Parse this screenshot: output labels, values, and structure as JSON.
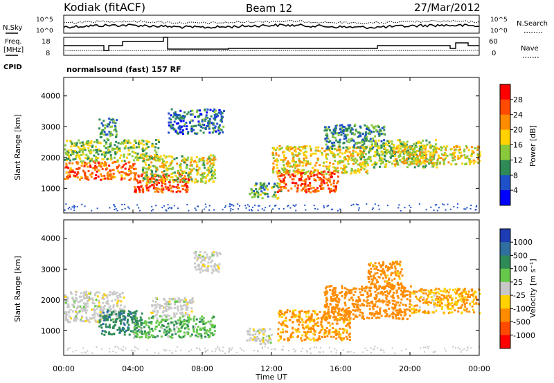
{
  "header": {
    "title": "Kodiak (fitACF)",
    "beam": "Beam 12",
    "date": "27/Mar/2012"
  },
  "aux": {
    "nsky_label": "N.Sky",
    "nsky_ticks": [
      "10^5",
      "10^0"
    ],
    "nsearch_label": "N.Search",
    "nsearch_ticks": [
      "10^5",
      "10^0"
    ],
    "freq_label_1": "Freq.",
    "freq_label_2": "[MHz]",
    "freq_ticks": [
      "18",
      "8"
    ],
    "nave_label": "Nave",
    "nave_ticks": [
      "60",
      "0"
    ],
    "cpid_label": "CPID",
    "cpid_value": "normalsound (fast) 157 RF"
  },
  "chart_data": [
    {
      "type": "heatmap",
      "panel": "power",
      "xlabel": "Time UT",
      "ylabel": "Slant Range [km]",
      "x_ticks": [
        "00:00",
        "04:00",
        "08:00",
        "12:00",
        "16:00",
        "20:00",
        "00:00"
      ],
      "y_ticks": [
        "1000",
        "2000",
        "3000",
        "4000"
      ],
      "xlim_hours": [
        0,
        24
      ],
      "ylim_km": [
        200,
        4600
      ],
      "colorbar": {
        "label": "Power [dB]",
        "ticks": [
          "28",
          "24",
          "20",
          "16",
          "12",
          "8",
          "4"
        ],
        "colors": [
          "#ff0000",
          "#ff4a00",
          "#ff8c00",
          "#ffd200",
          "#8ac83c",
          "#2e8b57",
          "#1e50c8",
          "#0000ff"
        ]
      },
      "regions": [
        {
          "t": [
            0.0,
            4.2
          ],
          "r": [
            1300,
            1900
          ],
          "level": 24
        },
        {
          "t": [
            0.0,
            5.5
          ],
          "r": [
            1900,
            2600
          ],
          "level": 14
        },
        {
          "t": [
            2.0,
            3.0
          ],
          "r": [
            2600,
            3300
          ],
          "level": 10
        },
        {
          "t": [
            4.0,
            7.2
          ],
          "r": [
            900,
            1500
          ],
          "level": 26
        },
        {
          "t": [
            4.5,
            8.7
          ],
          "r": [
            1200,
            2100
          ],
          "level": 16
        },
        {
          "t": [
            6.0,
            9.2
          ],
          "r": [
            2800,
            3600
          ],
          "level": 8
        },
        {
          "t": [
            10.7,
            12.5
          ],
          "r": [
            700,
            1200
          ],
          "level": 12
        },
        {
          "t": [
            12.3,
            15.8
          ],
          "r": [
            900,
            1600
          ],
          "level": 26
        },
        {
          "t": [
            12.0,
            17.5
          ],
          "r": [
            1500,
            2400
          ],
          "level": 18
        },
        {
          "t": [
            15.0,
            18.5
          ],
          "r": [
            2300,
            3100
          ],
          "level": 10
        },
        {
          "t": [
            17.0,
            21.5
          ],
          "r": [
            1700,
            2600
          ],
          "level": 14
        },
        {
          "t": [
            19.0,
            24.0
          ],
          "r": [
            1800,
            2400
          ],
          "level": 18
        }
      ]
    },
    {
      "type": "heatmap",
      "panel": "velocity",
      "xlabel": "Time UT",
      "ylabel": "Slant Range [km]",
      "x_ticks": [
        "00:00",
        "04:00",
        "08:00",
        "12:00",
        "16:00",
        "20:00",
        "00:00"
      ],
      "y_ticks": [
        "1000",
        "2000",
        "3000",
        "4000"
      ],
      "xlim_hours": [
        0,
        24
      ],
      "ylim_km": [
        200,
        4600
      ],
      "colorbar": {
        "label": "Velocity [m s⁻¹]",
        "ticks": [
          "1000",
          "500",
          "100",
          "25",
          "-25",
          "-100",
          "-500",
          "-1000"
        ],
        "colors": [
          "#1e3cb4",
          "#2f6fa0",
          "#2e8b57",
          "#66c84a",
          "#c8c8c8",
          "#ffd200",
          "#ff8c00",
          "#ff4a00",
          "#ff0000"
        ]
      },
      "regions": [
        {
          "t": [
            0.0,
            3.5
          ],
          "r": [
            1300,
            2300
          ],
          "level": 0
        },
        {
          "t": [
            2.0,
            4.5
          ],
          "r": [
            900,
            1700
          ],
          "level": 400
        },
        {
          "t": [
            4.0,
            8.7
          ],
          "r": [
            800,
            1500
          ],
          "level": 80
        },
        {
          "t": [
            5.0,
            7.5
          ],
          "r": [
            1500,
            2100
          ],
          "level": 0
        },
        {
          "t": [
            7.5,
            9.0
          ],
          "r": [
            2900,
            3600
          ],
          "level": 0
        },
        {
          "t": [
            10.5,
            12.0
          ],
          "r": [
            600,
            1100
          ],
          "level": 0
        },
        {
          "t": [
            12.3,
            16.5
          ],
          "r": [
            700,
            1700
          ],
          "level": -150
        },
        {
          "t": [
            15.0,
            20.0
          ],
          "r": [
            1400,
            2500
          ],
          "level": -300
        },
        {
          "t": [
            17.5,
            19.5
          ],
          "r": [
            2400,
            3300
          ],
          "level": -200
        },
        {
          "t": [
            20.0,
            24.0
          ],
          "r": [
            1600,
            2400
          ],
          "level": -100
        }
      ]
    }
  ]
}
